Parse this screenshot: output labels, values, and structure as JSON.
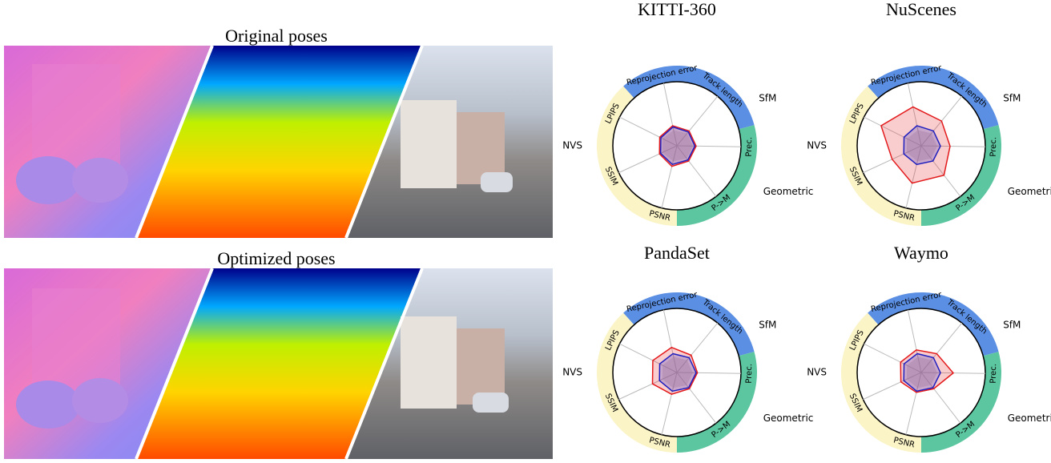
{
  "panels": [
    {
      "title": "Original poses"
    },
    {
      "title": "Optimized poses"
    }
  ],
  "chart_data": [
    {
      "type": "radar",
      "title": "KITTI-360",
      "rlim": [
        0,
        1
      ],
      "categories": [
        "Reprojection error",
        "Track length",
        "Prec.",
        "P->M",
        "PSNR",
        "SSIM",
        "LPIPS"
      ],
      "groups": [
        {
          "name": "SfM",
          "color": "#5b8fe3"
        },
        {
          "name": "Geometric",
          "color": "#5cc6a0"
        },
        {
          "name": "NVS",
          "color": "#fbf4c6"
        }
      ],
      "series": [
        {
          "color": "#e31a1c",
          "values": [
            0.32,
            0.3,
            0.3,
            0.3,
            0.33,
            0.3,
            0.3
          ]
        },
        {
          "color": "#1f1fbf",
          "values": [
            0.3,
            0.28,
            0.28,
            0.28,
            0.3,
            0.28,
            0.28
          ]
        }
      ]
    },
    {
      "type": "radar",
      "title": "NuScenes",
      "rlim": [
        0,
        1
      ],
      "categories": [
        "Reprojection error",
        "Track length",
        "Prec.",
        "P->M",
        "PSNR",
        "SSIM",
        "LPIPS"
      ],
      "groups": [
        {
          "name": "SfM",
          "color": "#5b8fe3"
        },
        {
          "name": "Geometric",
          "color": "#5cc6a0"
        },
        {
          "name": "NVS",
          "color": "#fbf4c6"
        }
      ],
      "series": [
        {
          "color": "#e31a1c",
          "values": [
            0.62,
            0.5,
            0.45,
            0.58,
            0.6,
            0.5,
            0.7
          ]
        },
        {
          "color": "#1f1fbf",
          "values": [
            0.32,
            0.3,
            0.3,
            0.3,
            0.3,
            0.3,
            0.3
          ]
        }
      ]
    },
    {
      "type": "radar",
      "title": "PandaSet",
      "rlim": [
        0,
        1
      ],
      "categories": [
        "Reprojection error",
        "Track length",
        "Prec.",
        "P->M",
        "PSNR",
        "SSIM",
        "LPIPS"
      ],
      "groups": [
        {
          "name": "SfM",
          "color": "#5b8fe3"
        },
        {
          "name": "Geometric",
          "color": "#5cc6a0"
        },
        {
          "name": "NVS",
          "color": "#fbf4c6"
        }
      ],
      "series": [
        {
          "color": "#e31a1c",
          "values": [
            0.4,
            0.35,
            0.32,
            0.32,
            0.35,
            0.42,
            0.42
          ]
        },
        {
          "color": "#1f1fbf",
          "values": [
            0.3,
            0.3,
            0.3,
            0.3,
            0.3,
            0.3,
            0.3
          ]
        }
      ]
    },
    {
      "type": "radar",
      "title": "Waymo",
      "rlim": [
        0,
        1
      ],
      "categories": [
        "Reprojection error",
        "Track length",
        "Prec.",
        "P->M",
        "PSNR",
        "SSIM",
        "LPIPS"
      ],
      "groups": [
        {
          "name": "SfM",
          "color": "#5b8fe3"
        },
        {
          "name": "Geometric",
          "color": "#5cc6a0"
        },
        {
          "name": "NVS",
          "color": "#fbf4c6"
        }
      ],
      "series": [
        {
          "color": "#e31a1c",
          "values": [
            0.36,
            0.38,
            0.5,
            0.32,
            0.32,
            0.35,
            0.36
          ]
        },
        {
          "color": "#1f1fbf",
          "values": [
            0.3,
            0.3,
            0.3,
            0.3,
            0.3,
            0.3,
            0.3
          ]
        }
      ]
    }
  ]
}
